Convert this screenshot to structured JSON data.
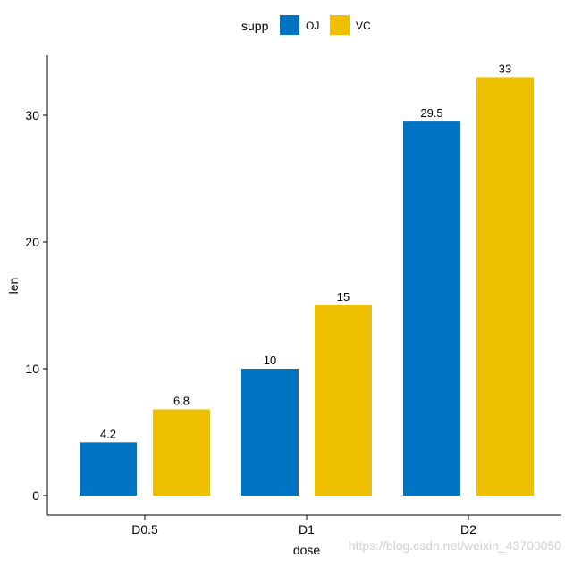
{
  "chart_data": {
    "type": "bar",
    "categories": [
      "D0.5",
      "D1",
      "D2"
    ],
    "series": [
      {
        "name": "OJ",
        "color": "#0073C2",
        "values": [
          4.2,
          10,
          29.5
        ]
      },
      {
        "name": "VC",
        "color": "#EFC000",
        "values": [
          6.8,
          15,
          33
        ]
      }
    ],
    "xlabel": "dose",
    "ylabel": "len",
    "ylim": [
      -1.6,
      34.6
    ],
    "yticks": [
      0,
      10,
      20,
      30
    ],
    "legend": {
      "title": "supp",
      "position": "top"
    },
    "grid": false
  },
  "watermark": "https://blog.csdn.net/weixin_43700050"
}
